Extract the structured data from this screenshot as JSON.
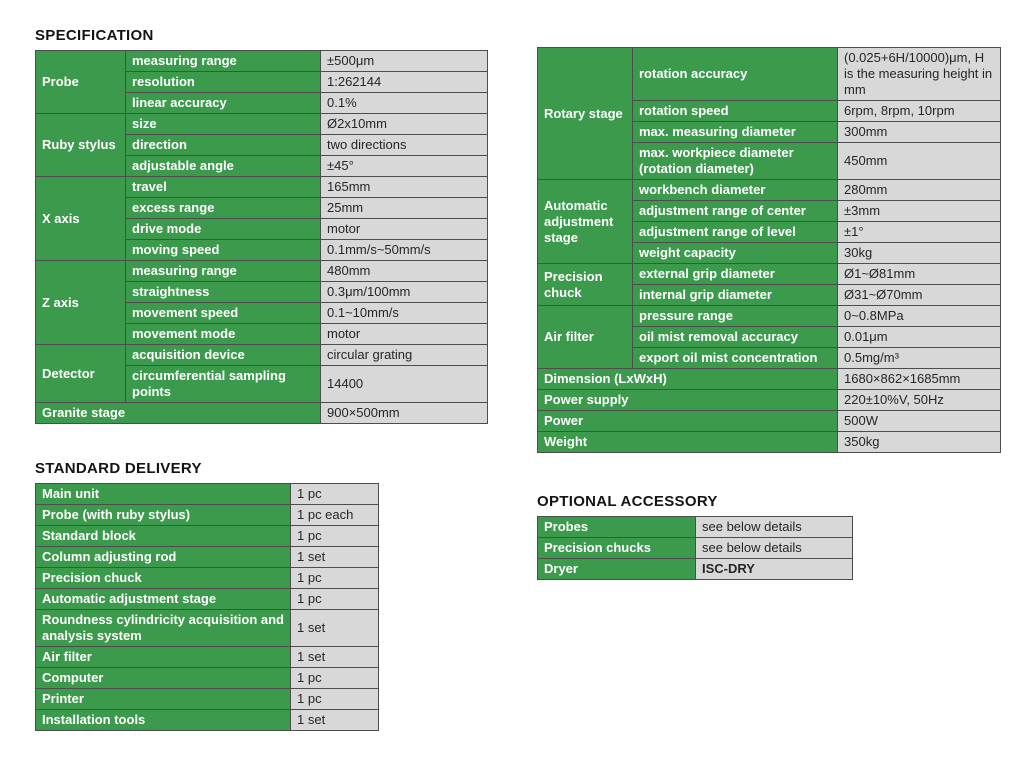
{
  "colors": {
    "green": "#3b9a4c",
    "cell_gray": "#d8d8d8",
    "border": "#4d4d4d",
    "text_dark": "#262626"
  },
  "sections": {
    "specification": {
      "heading": "SPECIFICATION",
      "left_table": [
        {
          "group": "Probe",
          "rows": [
            {
              "label": "measuring range",
              "value": "±500μm"
            },
            {
              "label": "resolution",
              "value": "1:262144"
            },
            {
              "label": "linear accuracy",
              "value": "0.1%"
            }
          ]
        },
        {
          "group": "Ruby stylus",
          "rows": [
            {
              "label": "size",
              "value": "Ø2x10mm"
            },
            {
              "label": "direction",
              "value": "two directions"
            },
            {
              "label": "adjustable angle",
              "value": "±45°"
            }
          ]
        },
        {
          "group": "X axis",
          "rows": [
            {
              "label": "travel",
              "value": "165mm"
            },
            {
              "label": "excess range",
              "value": "25mm"
            },
            {
              "label": "drive mode",
              "value": "motor"
            },
            {
              "label": "moving speed",
              "value": "0.1mm/s~50mm/s"
            }
          ]
        },
        {
          "group": "Z axis",
          "rows": [
            {
              "label": "measuring range",
              "value": "480mm"
            },
            {
              "label": "straightness",
              "value": "0.3μm/100mm"
            },
            {
              "label": "movement speed",
              "value": "0.1~10mm/s"
            },
            {
              "label": "movement mode",
              "value": "motor"
            }
          ]
        },
        {
          "group": "Detector",
          "rows": [
            {
              "label": "acquisition device",
              "value": "circular grating"
            },
            {
              "label": "circumferential sampling points",
              "value": "14400"
            }
          ]
        },
        {
          "group": "Granite stage",
          "value": "900×500mm"
        }
      ],
      "right_table": [
        {
          "group": "Rotary stage",
          "rows": [
            {
              "label": "rotation accuracy",
              "value": "(0.025+6H/10000)μm, H is the measuring height in mm"
            },
            {
              "label": "rotation speed",
              "value": "6rpm, 8rpm, 10rpm"
            },
            {
              "label": "max. measuring diameter",
              "value": "300mm"
            },
            {
              "label": "max. workpiece diameter (rotation diameter)",
              "value": "450mm"
            }
          ]
        },
        {
          "group": "Automatic adjustment stage",
          "rows": [
            {
              "label": "workbench diameter",
              "value": "280mm"
            },
            {
              "label": "adjustment range of center",
              "value": "±3mm"
            },
            {
              "label": "adjustment range of level",
              "value": "±1°"
            },
            {
              "label": "weight capacity",
              "value": "30kg"
            }
          ]
        },
        {
          "group": "Precision chuck",
          "rows": [
            {
              "label": "external grip diameter",
              "value": "Ø1~Ø81mm"
            },
            {
              "label": "internal grip diameter",
              "value": "Ø31~Ø70mm"
            }
          ]
        },
        {
          "group": "Air filter",
          "rows": [
            {
              "label": "pressure range",
              "value": "0~0.8MPa"
            },
            {
              "label": "oil mist removal accuracy",
              "value": "0.01μm"
            },
            {
              "label": "export oil mist concentration",
              "value": "0.5mg/m³"
            }
          ]
        },
        {
          "group": "Dimension (LxWxH)",
          "value": "1680×862×1685mm"
        },
        {
          "group": "Power supply",
          "value": "220±10%V, 50Hz"
        },
        {
          "group": "Power",
          "value": "500W"
        },
        {
          "group": "Weight",
          "value": "350kg"
        }
      ]
    },
    "standard_delivery": {
      "heading": "STANDARD DELIVERY",
      "rows": [
        {
          "label": "Main unit",
          "value": "1 pc"
        },
        {
          "label": "Probe (with ruby stylus)",
          "value": "1 pc each"
        },
        {
          "label": "Standard block",
          "value": "1 pc"
        },
        {
          "label": "Column adjusting rod",
          "value": "1 set"
        },
        {
          "label": "Precision chuck",
          "value": "1 pc"
        },
        {
          "label": "Automatic adjustment stage",
          "value": "1 pc"
        },
        {
          "label": "Roundness cylindricity acquisition and analysis system",
          "value": "1 set"
        },
        {
          "label": "Air filter",
          "value": "1 set"
        },
        {
          "label": "Computer",
          "value": "1 pc"
        },
        {
          "label": "Printer",
          "value": "1 pc"
        },
        {
          "label": "Installation tools",
          "value": "1 set"
        }
      ]
    },
    "optional_accessory": {
      "heading": "OPTIONAL ACCESSORY",
      "rows": [
        {
          "label": "Probes",
          "value": "see below details"
        },
        {
          "label": "Precision chucks",
          "value": "see below details"
        },
        {
          "label": "Dryer",
          "value": "ISC-DRY",
          "bold": true
        }
      ]
    }
  }
}
